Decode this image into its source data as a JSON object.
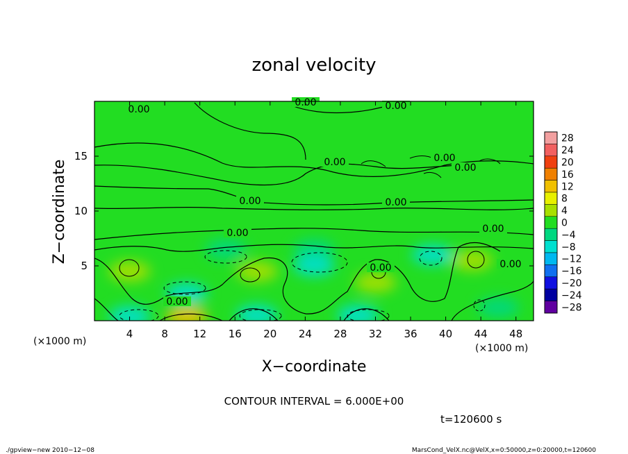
{
  "chart_data": {
    "type": "heatmap",
    "title": "zonal velocity",
    "xlabel": "X−coordinate",
    "ylabel": "Z−coordinate",
    "x_unit": "(×1000 m)",
    "y_unit": "(×1000 m)",
    "xlim": [
      0,
      50
    ],
    "ylim": [
      0,
      20
    ],
    "x_ticks": [
      4,
      8,
      12,
      16,
      20,
      24,
      28,
      32,
      36,
      40,
      44,
      48
    ],
    "y_ticks": [
      5,
      10,
      15
    ],
    "colorbar": {
      "levels": [
        28,
        24,
        20,
        16,
        12,
        8,
        4,
        0,
        -4,
        -8,
        -12,
        -16,
        -20,
        -24,
        -28
      ],
      "labels": [
        "28",
        "24",
        "20",
        "16",
        "12",
        "8",
        "4",
        "0",
        "−4",
        "−8",
        "−12",
        "−16",
        "−20",
        "−24",
        "−28"
      ],
      "colors": [
        "#f2a0a0",
        "#f26060",
        "#f04010",
        "#f08000",
        "#f0c000",
        "#e8f000",
        "#a8e000",
        "#22dd22",
        "#00d880",
        "#00e0d0",
        "#00b8f0",
        "#1070f0",
        "#1010e0",
        "#0000a0",
        "#6000a0"
      ]
    },
    "background_field": "#22dd22",
    "anomalies": [
      {
        "x": 4,
        "z": 4.5,
        "value": 4
      },
      {
        "x": 10.5,
        "z": 2.5,
        "value": -8
      },
      {
        "x": 10.5,
        "z": 0.4,
        "value": 12
      },
      {
        "x": 18.5,
        "z": 0.5,
        "value": -8
      },
      {
        "x": 18.5,
        "z": 4.5,
        "value": 4
      },
      {
        "x": 15,
        "z": 6.5,
        "value": -4
      },
      {
        "x": 25,
        "z": 6.5,
        "value": -4
      },
      {
        "x": 25,
        "z": 5,
        "value": -8
      },
      {
        "x": 30,
        "z": 0.5,
        "value": -8
      },
      {
        "x": 32,
        "z": 3.5,
        "value": 4
      },
      {
        "x": 38.5,
        "z": 6,
        "value": -8
      },
      {
        "x": 43,
        "z": 5.5,
        "value": 4
      },
      {
        "x": 46,
        "z": 1.2,
        "value": -4
      },
      {
        "x": 4,
        "z": 0.4,
        "value": -8
      }
    ],
    "contour_labels": [
      "0.00",
      "0.00",
      "0.00",
      "0.00",
      "0.00",
      "0.00",
      "0.00",
      "0.00",
      "0.00",
      "0.00",
      "0.00",
      "0.00",
      "0.00"
    ],
    "contour_interval": "CONTOUR INTERVAL = 6.000E+00",
    "time_label": "t=120600 s"
  },
  "footer": {
    "left": "./gpview−new   2010−12−08",
    "right": "MarsCond_VelX.nc@VelX,x=0:50000,z=0:20000,t=120600"
  }
}
